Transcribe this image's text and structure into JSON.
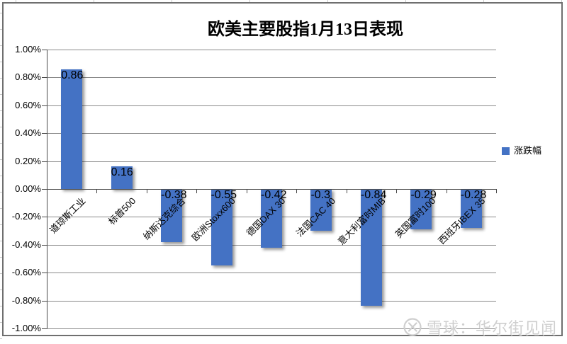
{
  "chart_data": {
    "type": "bar",
    "title": "欧美主要股指1月13日表现",
    "categories": [
      "道琼斯工业",
      "标普500",
      "纳斯达克综合",
      "欧洲Stoxx600",
      "德国DAX 30",
      "法国CAC 40",
      "意大利富时MIB",
      "英国富时100",
      "西班牙IBEX 35"
    ],
    "series": [
      {
        "name": "涨跌幅",
        "values": [
          0.86,
          0.16,
          -0.38,
          -0.55,
          -0.42,
          -0.3,
          -0.84,
          -0.29,
          -0.28
        ]
      }
    ],
    "unit": "percent",
    "xlabel": "",
    "ylabel": "",
    "ylim": [
      -1.0,
      1.0
    ],
    "ytick_step": 0.2,
    "ytick_labels": [
      "1.00%",
      "0.80%",
      "0.60%",
      "0.40%",
      "0.20%",
      "0.00%",
      "-0.20%",
      "-0.40%",
      "-0.60%",
      "-0.80%",
      "-1.00%"
    ],
    "grid": true,
    "legend": {
      "position": "right",
      "entries": [
        "涨跌幅"
      ]
    },
    "bar_color": "#4472C4"
  },
  "watermark": {
    "source_label": "雪球：华尔街见闻",
    "logo": "xueqiu-logo",
    "color": "#cfcfcf"
  }
}
